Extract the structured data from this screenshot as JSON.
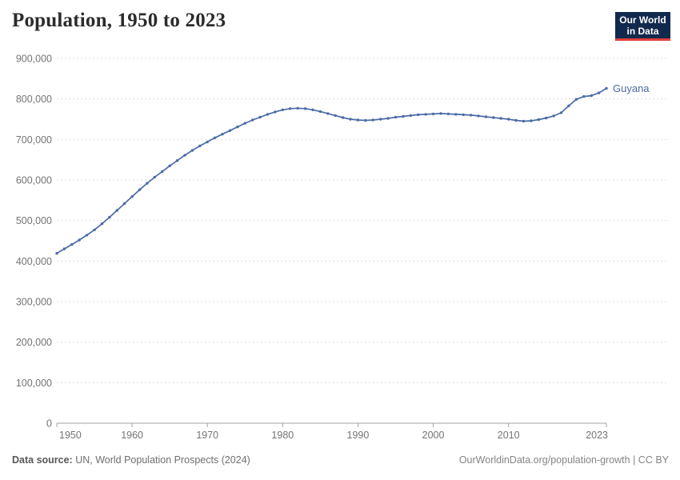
{
  "header": {
    "title": "Population, 1950 to 2023",
    "logo": {
      "line1": "Our World",
      "line2": "in Data",
      "background": "#12294e",
      "accent": "#e0403a",
      "text_color": "#ffffff"
    }
  },
  "chart_data": {
    "type": "line",
    "title": "Population, 1950 to 2023",
    "entity": "Guyana",
    "xlabel": "",
    "ylabel": "",
    "xlim": [
      1950,
      2023
    ],
    "ylim": [
      0,
      900000
    ],
    "grid": "horizontal-dashed",
    "gridline_color": "#dedede",
    "axis_color": "#a3a3a3",
    "tick_label_color": "#737373",
    "legend_position": "end-of-line",
    "x_ticks": [
      1950,
      1960,
      1970,
      1980,
      1990,
      2000,
      2010,
      2023
    ],
    "y_ticks": [
      0,
      100000,
      200000,
      300000,
      400000,
      500000,
      600000,
      700000,
      800000,
      900000
    ],
    "y_tick_labels": [
      "0",
      "100,000",
      "200,000",
      "300,000",
      "400,000",
      "500,000",
      "600,000",
      "700,000",
      "800,000",
      "900,000"
    ],
    "series": [
      {
        "name": "Guyana",
        "color": "#4c6ba7",
        "years": [
          1950,
          1951,
          1952,
          1953,
          1954,
          1955,
          1956,
          1957,
          1958,
          1959,
          1960,
          1961,
          1962,
          1963,
          1964,
          1965,
          1966,
          1967,
          1968,
          1969,
          1970,
          1971,
          1972,
          1973,
          1974,
          1975,
          1976,
          1977,
          1978,
          1979,
          1980,
          1981,
          1982,
          1983,
          1984,
          1985,
          1986,
          1987,
          1988,
          1989,
          1990,
          1991,
          1992,
          1993,
          1994,
          1995,
          1996,
          1997,
          1998,
          1999,
          2000,
          2001,
          2002,
          2003,
          2004,
          2005,
          2006,
          2007,
          2008,
          2009,
          2010,
          2011,
          2012,
          2013,
          2014,
          2015,
          2016,
          2017,
          2018,
          2019,
          2020,
          2021,
          2022,
          2023
        ],
        "values": [
          419000,
          430000,
          441000,
          452000,
          464000,
          477000,
          492000,
          508000,
          525000,
          542000,
          559000,
          576000,
          592000,
          607000,
          621000,
          635000,
          648000,
          661000,
          673000,
          684000,
          694000,
          704000,
          713000,
          722000,
          731000,
          740000,
          748000,
          755000,
          762000,
          768000,
          773000,
          776000,
          777000,
          776000,
          773000,
          769000,
          764000,
          759000,
          754000,
          750000,
          748000,
          747000,
          748000,
          750000,
          752000,
          755000,
          757000,
          759000,
          761000,
          762000,
          763000,
          764000,
          763000,
          762000,
          761000,
          760000,
          758000,
          756000,
          754000,
          752000,
          750000,
          747000,
          745000,
          746000,
          749000,
          753000,
          758000,
          766000,
          783000,
          799000,
          806000,
          808000,
          815000,
          826000
        ]
      }
    ]
  },
  "footer": {
    "source_label": "Data source:",
    "source_text": " UN, World Population Prospects (2024)",
    "link_text": "OurWorldinData.org/population-growth | CC BY"
  }
}
